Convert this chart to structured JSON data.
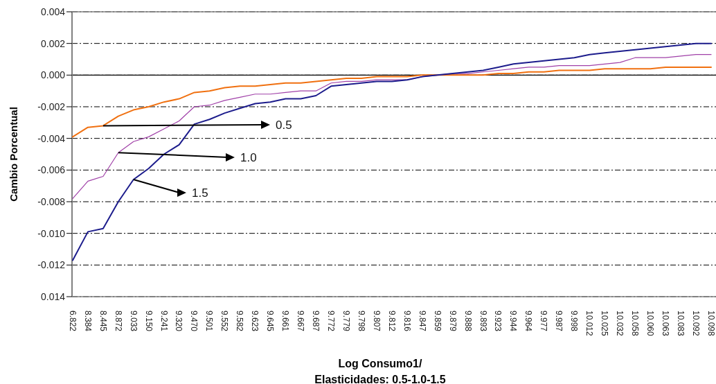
{
  "chart_data": {
    "type": "line",
    "title": "Elasticidades: 0.5-1.0-1.5",
    "xlabel": "Log  Consumo1/",
    "ylabel": "Cambio Porcentual",
    "categories": [
      "6.822",
      "8.384",
      "8.445",
      "8.872",
      "9.033",
      "9.150",
      "9.241",
      "9.320",
      "9.470",
      "9.501",
      "9.552",
      "9.582",
      "9.623",
      "9.645",
      "9.661",
      "9.667",
      "9.687",
      "9.772",
      "9.779",
      "9.798",
      "9.807",
      "9.812",
      "9.816",
      "9.847",
      "9.859",
      "9.879",
      "9.888",
      "9.893",
      "9.923",
      "9.944",
      "9.964",
      "9.977",
      "9.987",
      "9.998",
      "10.012",
      "10.025",
      "10.032",
      "10.058",
      "10.060",
      "10.063",
      "10.083",
      "10.092",
      "10.098"
    ],
    "series": [
      {
        "color": "#f07010",
        "values": [
          -0.0039,
          -0.0033,
          -0.0032,
          -0.0026,
          -0.0022,
          -0.002,
          -0.0017,
          -0.0015,
          -0.0011,
          -0.001,
          -0.0008,
          -0.0007,
          -0.0007,
          -0.0006,
          -0.0005,
          -0.0005,
          -0.0004,
          -0.0003,
          -0.0002,
          -0.0002,
          -0.0001,
          -0.0001,
          -0.0001,
          0.0,
          0.0,
          0.0,
          0.0,
          0.0,
          0.0001,
          0.0001,
          0.0002,
          0.0002,
          0.0003,
          0.0003,
          0.0003,
          0.0004,
          0.0004,
          0.0004,
          0.0004,
          0.0005,
          0.0005,
          0.0005,
          0.0005
        ]
      },
      {
        "color": "#a040a8",
        "values": [
          -0.0078,
          -0.0067,
          -0.0064,
          -0.0049,
          -0.0042,
          -0.0039,
          -0.0034,
          -0.0029,
          -0.002,
          -0.0019,
          -0.0016,
          -0.0014,
          -0.0012,
          -0.0012,
          -0.0011,
          -0.001,
          -0.001,
          -0.0005,
          -0.0004,
          -0.0004,
          -0.0003,
          -0.0003,
          -0.0003,
          -0.0001,
          0.0,
          0.0001,
          0.0001,
          0.0002,
          0.0003,
          0.0004,
          0.0005,
          0.0005,
          0.0006,
          0.0006,
          0.0006,
          0.0007,
          0.0008,
          0.0011,
          0.0011,
          0.0011,
          0.0012,
          0.0013,
          0.0013
        ]
      },
      {
        "color": "#1c1c8c",
        "values": [
          -0.0117,
          -0.0099,
          -0.0097,
          -0.008,
          -0.0066,
          -0.0059,
          -0.005,
          -0.0044,
          -0.0031,
          -0.0028,
          -0.0024,
          -0.0021,
          -0.0018,
          -0.0017,
          -0.0015,
          -0.0015,
          -0.0013,
          -0.0007,
          -0.0006,
          -0.0005,
          -0.0004,
          -0.0004,
          -0.0003,
          -0.0001,
          0.0,
          0.0001,
          0.0002,
          0.0003,
          0.0005,
          0.0007,
          0.0008,
          0.0009,
          0.001,
          0.0011,
          0.0013,
          0.0014,
          0.0015,
          0.0016,
          0.0017,
          0.0018,
          0.0019,
          0.002,
          0.002
        ]
      }
    ],
    "ylim": [
      -0.014,
      0.004
    ],
    "yticks": [
      {
        "value": 0.004,
        "label": "0.004"
      },
      {
        "value": 0.002,
        "label": "0.002"
      },
      {
        "value": 0,
        "label": "0.000"
      },
      {
        "value": -0.002,
        "label": "-0.002"
      },
      {
        "value": -0.004,
        "label": "-0.004"
      },
      {
        "value": -0.006,
        "label": "-0.006"
      },
      {
        "value": -0.008,
        "label": "-0.008"
      },
      {
        "value": -0.01,
        "label": "-0.010"
      },
      {
        "value": -0.012,
        "label": "-0.012"
      },
      {
        "value": -0.014,
        "label": "0.014"
      }
    ],
    "grid": "y",
    "ref_lines": [
      {
        "axis": "y",
        "value": 0,
        "color": "#000000",
        "line_style": "solid"
      }
    ],
    "annotations": [
      {
        "text": "0.5",
        "x": "8.445",
        "y": -0.0032
      },
      {
        "text": "1.0",
        "x": "8.872",
        "y": -0.0049
      },
      {
        "text": "1.5",
        "x": "9.033",
        "y": -0.0066
      }
    ]
  }
}
